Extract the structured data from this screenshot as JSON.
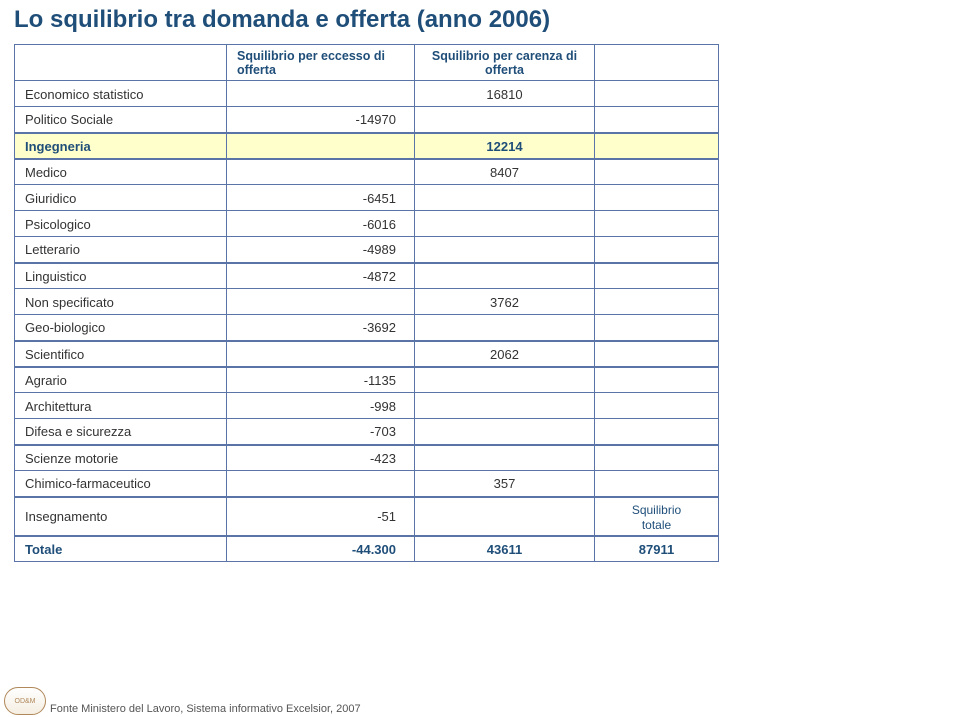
{
  "title": "Lo squilibrio tra domanda e offerta (anno 2006)",
  "headers": {
    "label": "",
    "excess": "Squilibrio per eccesso di offerta",
    "shortage": "Squilibrio per carenza di offerta",
    "last": ""
  },
  "groups": [
    {
      "highlight": false,
      "rows": [
        {
          "label": "Economico statistico",
          "excess": "",
          "shortage": "16810"
        },
        {
          "label": "Politico Sociale",
          "excess": "-14970",
          "shortage": ""
        }
      ]
    },
    {
      "highlight": true,
      "rows": [
        {
          "label": "Ingegneria",
          "excess": "",
          "shortage": "12214"
        }
      ]
    },
    {
      "highlight": false,
      "rows": [
        {
          "label": "Medico",
          "excess": "",
          "shortage": "8407"
        },
        {
          "label": "Giuridico",
          "excess": "-6451",
          "shortage": ""
        },
        {
          "label": "Psicologico",
          "excess": "-6016",
          "shortage": ""
        },
        {
          "label": "Letterario",
          "excess": "-4989",
          "shortage": ""
        }
      ]
    },
    {
      "highlight": false,
      "rows": [
        {
          "label": "Linguistico",
          "excess": "-4872",
          "shortage": ""
        },
        {
          "label": "Non specificato",
          "excess": "",
          "shortage": "3762"
        },
        {
          "label": "Geo-biologico",
          "excess": "-3692",
          "shortage": ""
        }
      ]
    },
    {
      "highlight": false,
      "rows": [
        {
          "label": "Scientifico",
          "excess": "",
          "shortage": "2062"
        }
      ]
    },
    {
      "highlight": false,
      "rows": [
        {
          "label": "Agrario",
          "excess": "-1135",
          "shortage": ""
        },
        {
          "label": "Architettura",
          "excess": "-998",
          "shortage": ""
        },
        {
          "label": "Difesa e sicurezza",
          "excess": "-703",
          "shortage": ""
        }
      ]
    },
    {
      "highlight": false,
      "rows": [
        {
          "label": "Scienze motorie",
          "excess": "-423",
          "shortage": ""
        },
        {
          "label": "Chimico-farmaceutico",
          "excess": "",
          "shortage": "357"
        }
      ]
    },
    {
      "highlight": false,
      "rows": [
        {
          "label": "Insegnamento",
          "excess": "-51",
          "shortage": "",
          "last_label": "Squilibrio totale"
        }
      ]
    }
  ],
  "total": {
    "label": "Totale",
    "excess": "-44.300",
    "shortage": "43611",
    "last": "87911"
  },
  "footer": {
    "source": "Fonte Ministero del Lavoro, Sistema informativo Excelsior, 2007",
    "logo": "OD&M"
  },
  "colors": {
    "title": "#1f4e79",
    "border": "#5a74a8",
    "highlight_bg": "#ffffcc",
    "text": "#333333"
  }
}
